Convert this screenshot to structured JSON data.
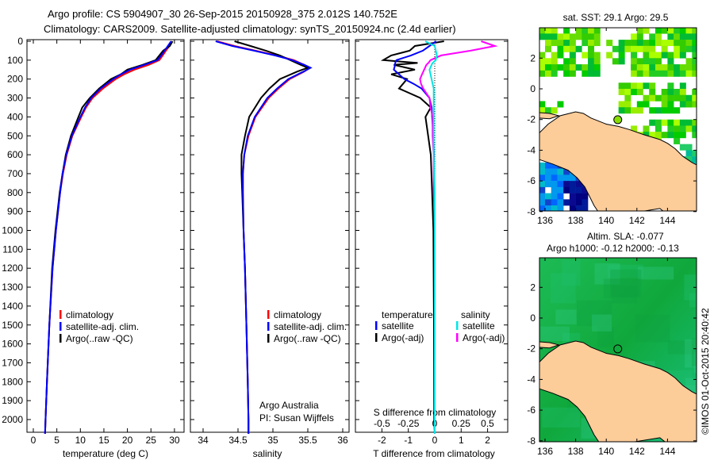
{
  "title": {
    "line1": "Argo profile: CS 5904907_30 26-Sep-2015 20150928_375 2.012S 140.752E",
    "line2": "Climatology: CARS2009. Satellite-adjusted climatology: synTS_20150924.nc (2.4d earlier)"
  },
  "colors": {
    "climatology": "#ff0000",
    "satellite": "#0000ff",
    "argo": "#000000",
    "sal_satellite": "#00e5e5",
    "sal_argo": "#ff00ff",
    "land": "#fccc99"
  },
  "credit": "©IMOS 01-Oct-2015 20:40:42",
  "chart_data": [
    {
      "type": "line",
      "xlabel": "temperature (deg C)",
      "xlim": [
        -1.3,
        32
      ],
      "xticks": [
        0,
        5,
        10,
        15,
        20,
        25,
        30
      ],
      "ylim": [
        2080,
        0
      ],
      "yticks": [
        0,
        100,
        200,
        300,
        400,
        500,
        600,
        700,
        800,
        900,
        1000,
        1100,
        1200,
        1300,
        1400,
        1500,
        1600,
        1700,
        1800,
        1900,
        2000
      ],
      "depth": [
        0,
        25,
        50,
        75,
        100,
        125,
        150,
        175,
        200,
        250,
        300,
        350,
        400,
        500,
        600,
        700,
        800,
        1000,
        1200,
        1500,
        1800,
        2000,
        2075
      ],
      "series": [
        {
          "name": "climatology",
          "values": [
            29.4,
            28.9,
            28.2,
            27.5,
            26.8,
            24.5,
            21.5,
            19.3,
            17.5,
            14.8,
            12.6,
            11.2,
            10.2,
            8.3,
            7.1,
            6.3,
            5.7,
            4.8,
            4.1,
            3.4,
            2.9,
            2.6,
            2.5
          ]
        },
        {
          "name": "satellite-adj. clim.",
          "values": [
            29.3,
            28.6,
            27.9,
            27.2,
            26.4,
            23.6,
            20.6,
            18.6,
            17.0,
            14.3,
            12.3,
            11.0,
            10.0,
            8.2,
            7.0,
            6.2,
            5.7,
            4.8,
            4.1,
            3.4,
            2.9,
            2.6,
            2.5
          ]
        },
        {
          "name": "Argo(..raw -QC)",
          "values": [
            29.6,
            29.0,
            27.6,
            26.8,
            26.0,
            23.2,
            20.0,
            18.6,
            16.5,
            14.0,
            12.0,
            10.4,
            9.6,
            8.0,
            6.9,
            6.2,
            5.6,
            4.7,
            4.0,
            3.4,
            2.9,
            2.6,
            2.5
          ]
        }
      ],
      "legend": [
        "climatology",
        "satellite-adj. clim.",
        "Argo(..raw -QC)"
      ]
    },
    {
      "type": "line",
      "xlabel": "salinity",
      "xlim": [
        33.8,
        36.2
      ],
      "xticks": [
        34,
        34.5,
        35,
        35.5,
        36
      ],
      "xticklabels": [
        "34",
        "34.5",
        "35",
        "35.5",
        "36"
      ],
      "depth": [
        0,
        25,
        50,
        75,
        100,
        125,
        140,
        160,
        200,
        250,
        300,
        400,
        500,
        600,
        700,
        800,
        1000,
        1200,
        1500,
        1800,
        2000,
        2075
      ],
      "series": [
        {
          "name": "climatology",
          "values": [
            34.2,
            34.45,
            34.75,
            35.05,
            35.3,
            35.45,
            35.53,
            35.45,
            35.24,
            35.08,
            34.94,
            34.75,
            34.65,
            34.59,
            34.57,
            34.57,
            34.58,
            34.6,
            34.62,
            34.64,
            34.65,
            34.65
          ]
        },
        {
          "name": "satellite-adj. clim.",
          "values": [
            34.18,
            34.42,
            34.73,
            35.03,
            35.28,
            35.45,
            35.54,
            35.44,
            35.22,
            35.06,
            34.92,
            34.74,
            34.64,
            34.59,
            34.57,
            34.57,
            34.58,
            34.6,
            34.62,
            34.64,
            34.65,
            34.65
          ]
        },
        {
          "name": "Argo(..raw -QC)",
          "values": [
            34.45,
            34.68,
            34.9,
            35.1,
            35.25,
            35.4,
            35.5,
            35.35,
            35.1,
            34.95,
            34.83,
            34.66,
            34.6,
            34.55,
            34.55,
            34.56,
            34.58,
            34.6,
            34.62,
            34.64,
            34.65,
            34.65
          ]
        }
      ],
      "legend": [
        "climatology",
        "satellite-adj. clim.",
        "Argo(..raw -QC)"
      ],
      "annotation": [
        "Argo Australia",
        "PI: Susan Wijffels"
      ]
    },
    {
      "type": "line",
      "xlabel": "T difference from climatology",
      "xlim": [
        -3,
        2.8
      ],
      "xticks": [
        -2,
        -1,
        0,
        1,
        2
      ],
      "x2label": "S difference from climatology",
      "x2ticks": [
        -0.5,
        -0.25,
        0,
        0.25,
        0.5
      ],
      "x2ticklabels": [
        "-0.5",
        "-0.25",
        "0",
        "0.25",
        "0.5"
      ],
      "depth": [
        0,
        25,
        50,
        75,
        100,
        115,
        125,
        150,
        175,
        200,
        225,
        250,
        300,
        350,
        400,
        500,
        600,
        800,
        1000,
        1500,
        2000,
        2075
      ],
      "series": [
        {
          "name": "temperature satellite",
          "axis": "T",
          "values": [
            0.05,
            -0.2,
            -0.45,
            -0.9,
            -1.45,
            -1.5,
            -1.5,
            -1.55,
            -1.35,
            -1.15,
            -0.8,
            -0.5,
            -0.2,
            -0.12,
            -0.1,
            -0.05,
            -0.03,
            -0.02,
            0,
            0,
            0,
            0
          ]
        },
        {
          "name": "temperature Argo(-adj)",
          "axis": "T",
          "values": [
            0.35,
            -0.75,
            -0.95,
            -1.65,
            -1.95,
            -0.65,
            -1.55,
            -0.75,
            -1.65,
            -1.05,
            -1.2,
            -1.35,
            -0.55,
            -0.15,
            -0.35,
            -0.25,
            -0.15,
            -0.1,
            -0.05,
            -0.03,
            -0.02,
            0
          ]
        },
        {
          "name": "salinity satellite",
          "axis": "S",
          "values": [
            -0.09,
            0.0,
            0.01,
            0.02,
            0.01,
            -0.02,
            -0.03,
            -0.05,
            -0.04,
            -0.03,
            -0.02,
            -0.01,
            -0.01,
            -0.01,
            -0.01,
            -0.01,
            -0.01,
            0,
            0,
            0,
            0,
            0
          ]
        },
        {
          "name": "salinity Argo(-adj)",
          "axis": "S",
          "values": [
            0.44,
            0.57,
            0.34,
            0.06,
            -0.04,
            -0.06,
            -0.08,
            -0.1,
            -0.12,
            -0.14,
            -0.13,
            -0.11,
            -0.05,
            -0.04,
            -0.02,
            -0.02,
            -0.01,
            -0.01,
            0,
            0,
            0,
            0
          ]
        }
      ],
      "legend": {
        "temperature_header": "temperature",
        "salinity_header": "salinity",
        "items": [
          "satellite",
          "Argo(-adj)",
          "satellite",
          "Argo(-adj)"
        ]
      }
    }
  ],
  "maps": [
    {
      "title": "sat. SST: 29.1  Argo: 29.5",
      "xticks": [
        "136",
        "138",
        "140",
        "142",
        "144"
      ],
      "yticks": [
        "2",
        "0",
        "-2",
        "-4",
        "-6",
        "-8"
      ],
      "argo_lon": 140.752,
      "argo_lat": -2.012
    },
    {
      "title1": "Altim. SLA: -0.077",
      "title2": "Argo h1000: -0.12 h2000: -0.13",
      "xticks": [
        "136",
        "138",
        "140",
        "142",
        "144"
      ],
      "yticks": [
        "2",
        "0",
        "-2",
        "-4",
        "-6",
        "-8"
      ],
      "argo_lon": 140.752,
      "argo_lat": -2.012
    }
  ]
}
